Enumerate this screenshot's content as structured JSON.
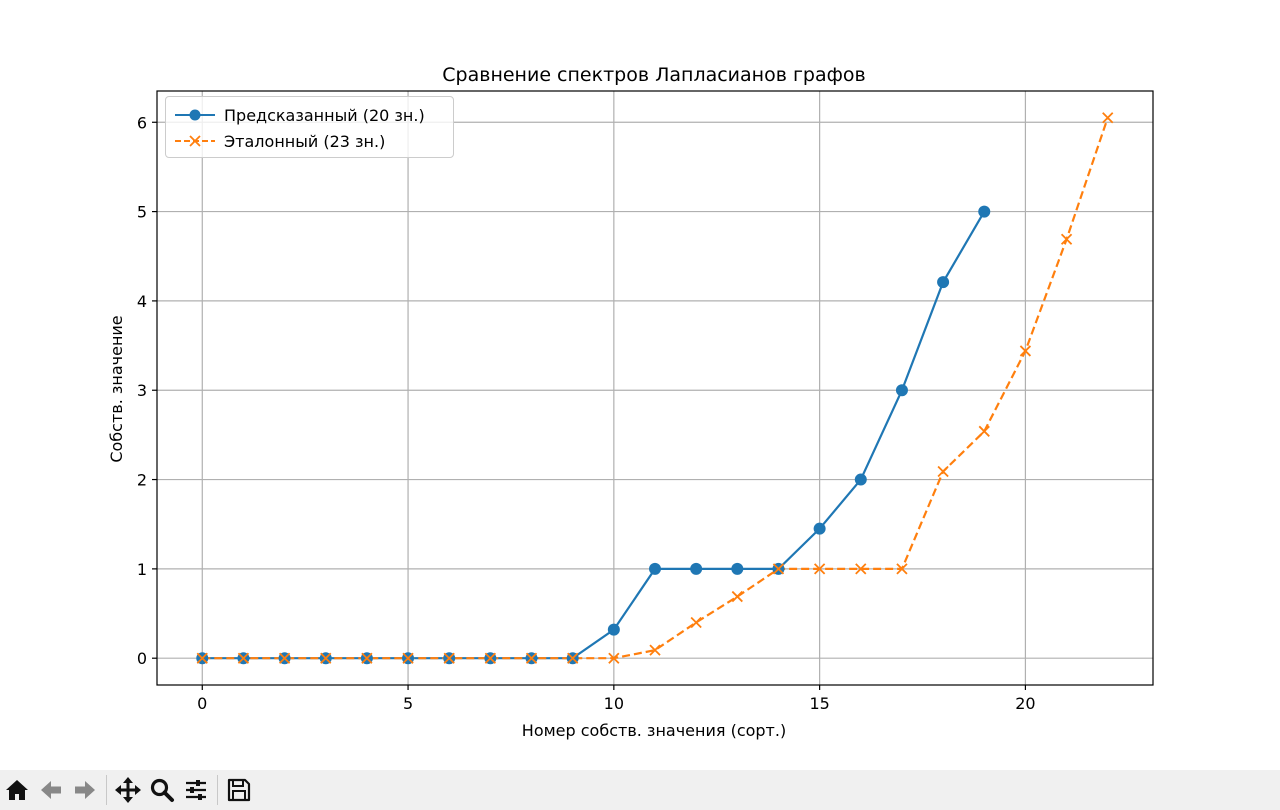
{
  "chart_data": {
    "type": "line",
    "title": "Сравнение спектров Лапласианов графов",
    "xlabel": "Номер собств. значения (сорт.)",
    "ylabel": "Собств. значение",
    "xlim": [
      -1.1,
      23.1
    ],
    "ylim": [
      -0.3,
      6.35
    ],
    "xticks": [
      0,
      5,
      10,
      15,
      20
    ],
    "yticks": [
      0,
      1,
      2,
      3,
      4,
      5,
      6
    ],
    "grid": true,
    "legend_position": "top-left",
    "series": [
      {
        "name": "Предсказанный (20 зн.)",
        "color": "#1f77b4",
        "marker": "circle",
        "linestyle": "solid",
        "x": [
          0,
          1,
          2,
          3,
          4,
          5,
          6,
          7,
          8,
          9,
          10,
          11,
          12,
          13,
          14,
          15,
          16,
          17,
          18,
          19
        ],
        "y": [
          0,
          0,
          0,
          0,
          0,
          0,
          0,
          0,
          0,
          0,
          0.32,
          1,
          1,
          1,
          1,
          1.45,
          2,
          3,
          4.21,
          5
        ]
      },
      {
        "name": "Эталонный (23 зн.)",
        "color": "#ff7f0e",
        "marker": "x",
        "linestyle": "dashed",
        "x": [
          0,
          1,
          2,
          3,
          4,
          5,
          6,
          7,
          8,
          9,
          10,
          11,
          12,
          13,
          14,
          15,
          16,
          17,
          18,
          19,
          20,
          21,
          22
        ],
        "y": [
          0,
          0,
          0,
          0,
          0,
          0,
          0,
          0,
          0,
          0,
          0,
          0.09,
          0.4,
          0.69,
          1,
          1,
          1,
          1,
          2.09,
          2.54,
          3.44,
          4.69,
          6.05
        ]
      }
    ]
  },
  "toolbar": {
    "icons": [
      "home-icon",
      "back-arrow-icon",
      "forward-arrow-icon",
      "pan-icon",
      "zoom-icon",
      "configure-subplots-icon",
      "save-icon"
    ]
  }
}
